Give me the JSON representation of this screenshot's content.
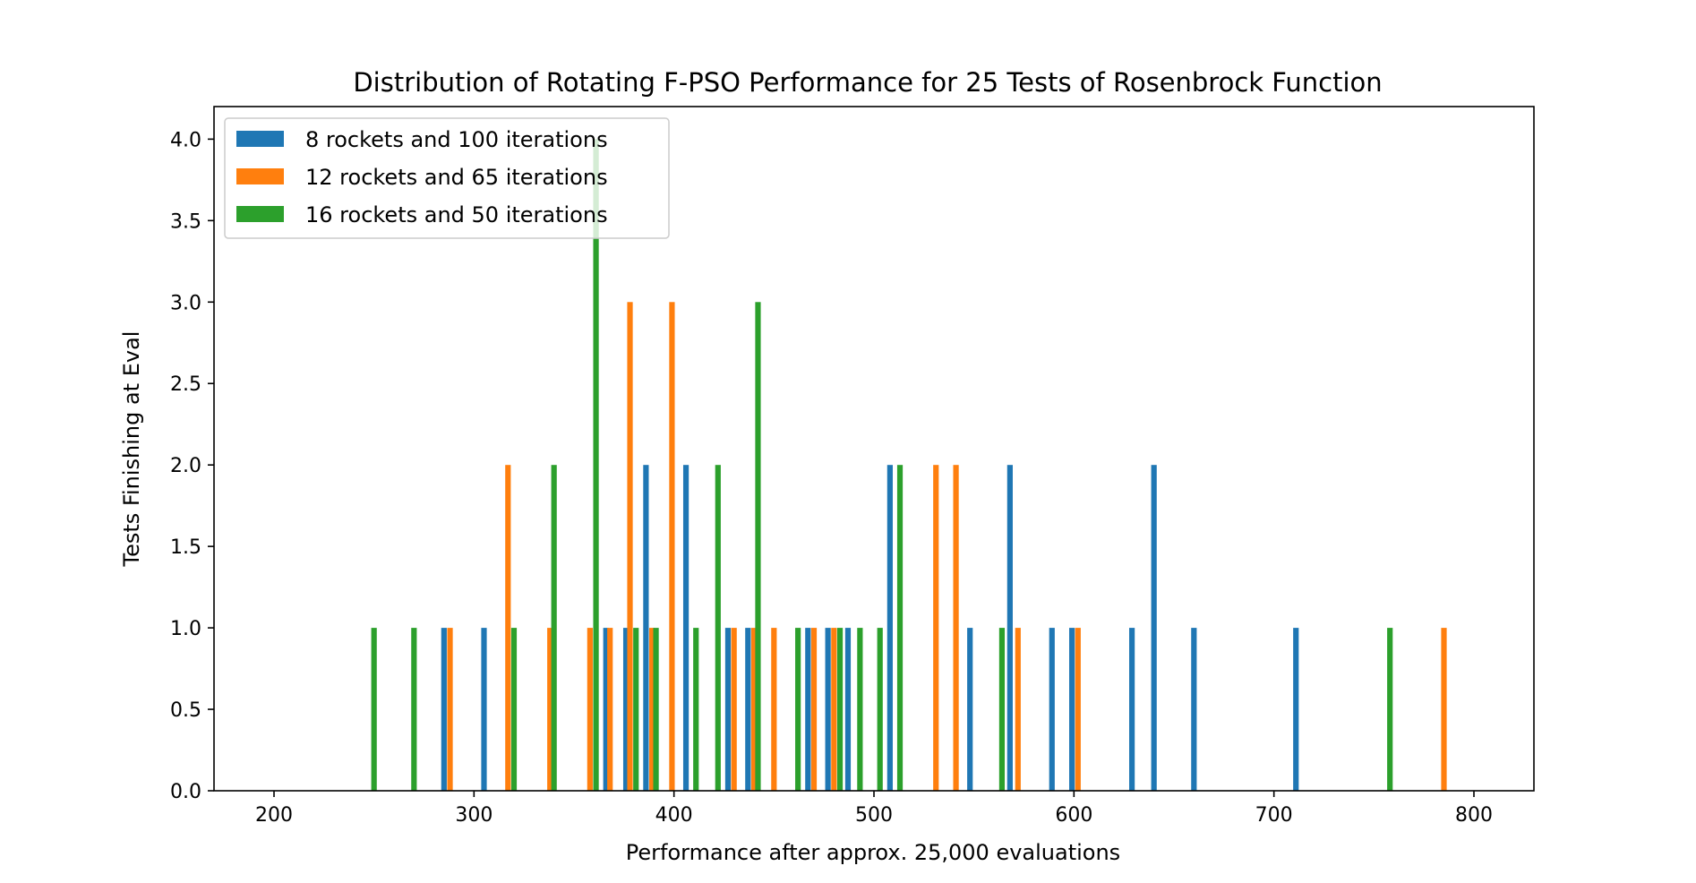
{
  "chart_data": {
    "type": "bar",
    "title": "Distribution of Rotating F-PSO Performance for 25 Tests of Rosenbrock Function",
    "xlabel": "Performance after approx. 25,000 evaluations",
    "ylabel": "Tests Finishing at Eval",
    "xlim": [
      170,
      830
    ],
    "ylim": [
      0,
      4.2
    ],
    "xticks": [
      200,
      300,
      400,
      500,
      600,
      700,
      800
    ],
    "yticks": [
      0.0,
      0.5,
      1.0,
      1.5,
      2.0,
      2.5,
      3.0,
      3.5,
      4.0
    ],
    "grid": false,
    "legend_position": "upper-left",
    "series": [
      {
        "name": "8 rockets and 100 iterations",
        "color": "#1f77b4",
        "points": [
          {
            "x": 285,
            "y": 1
          },
          {
            "x": 305,
            "y": 1
          },
          {
            "x": 366,
            "y": 1
          },
          {
            "x": 376,
            "y": 1
          },
          {
            "x": 386,
            "y": 2
          },
          {
            "x": 406,
            "y": 2
          },
          {
            "x": 427,
            "y": 1
          },
          {
            "x": 437,
            "y": 1
          },
          {
            "x": 467,
            "y": 1
          },
          {
            "x": 477,
            "y": 1
          },
          {
            "x": 487,
            "y": 1
          },
          {
            "x": 508,
            "y": 2
          },
          {
            "x": 548,
            "y": 1
          },
          {
            "x": 568,
            "y": 2
          },
          {
            "x": 589,
            "y": 1
          },
          {
            "x": 599,
            "y": 1
          },
          {
            "x": 629,
            "y": 1
          },
          {
            "x": 640,
            "y": 2
          },
          {
            "x": 660,
            "y": 1
          },
          {
            "x": 711,
            "y": 1
          }
        ]
      },
      {
        "name": "12 rockets and 65 iterations",
        "color": "#ff7f0e",
        "points": [
          {
            "x": 288,
            "y": 1
          },
          {
            "x": 317,
            "y": 2
          },
          {
            "x": 338,
            "y": 1
          },
          {
            "x": 358,
            "y": 1
          },
          {
            "x": 368,
            "y": 1
          },
          {
            "x": 378,
            "y": 3
          },
          {
            "x": 389,
            "y": 1
          },
          {
            "x": 399,
            "y": 3
          },
          {
            "x": 430,
            "y": 1
          },
          {
            "x": 440,
            "y": 1
          },
          {
            "x": 450,
            "y": 1
          },
          {
            "x": 470,
            "y": 1
          },
          {
            "x": 480,
            "y": 1
          },
          {
            "x": 531,
            "y": 2
          },
          {
            "x": 541,
            "y": 2
          },
          {
            "x": 572,
            "y": 1
          },
          {
            "x": 602,
            "y": 1
          },
          {
            "x": 785,
            "y": 1
          }
        ]
      },
      {
        "name": "16 rockets and 50 iterations",
        "color": "#2ca02c",
        "points": [
          {
            "x": 250,
            "y": 1
          },
          {
            "x": 270,
            "y": 1
          },
          {
            "x": 320,
            "y": 1
          },
          {
            "x": 340,
            "y": 2
          },
          {
            "x": 361,
            "y": 4
          },
          {
            "x": 381,
            "y": 1
          },
          {
            "x": 391,
            "y": 1
          },
          {
            "x": 411,
            "y": 1
          },
          {
            "x": 422,
            "y": 2
          },
          {
            "x": 442,
            "y": 3
          },
          {
            "x": 462,
            "y": 1
          },
          {
            "x": 483,
            "y": 1
          },
          {
            "x": 493,
            "y": 1
          },
          {
            "x": 503,
            "y": 1
          },
          {
            "x": 513,
            "y": 2
          },
          {
            "x": 564,
            "y": 1
          },
          {
            "x": 758,
            "y": 1
          }
        ]
      }
    ]
  }
}
